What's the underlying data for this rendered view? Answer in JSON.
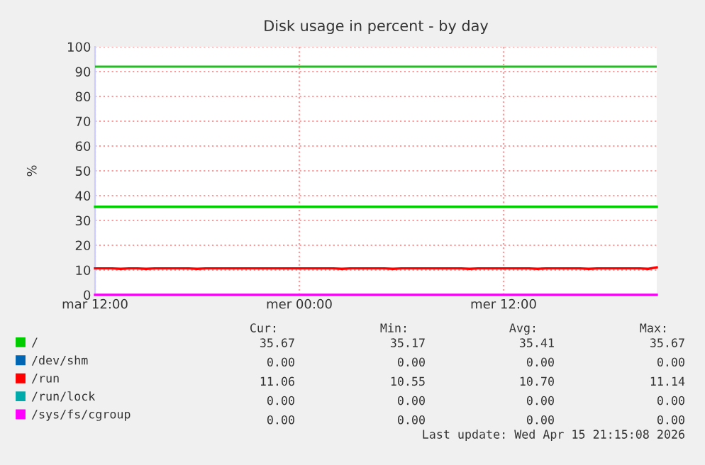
{
  "chart_data": {
    "type": "line",
    "title": "Disk usage in percent - by day",
    "ylabel": "%",
    "categories": [
      "mar 12:00",
      null,
      null,
      null,
      null,
      null,
      null,
      null,
      null,
      null,
      null,
      null,
      null,
      null,
      null,
      null,
      null,
      null,
      null,
      null,
      null,
      null,
      null,
      null,
      "mer 00:00",
      null,
      null,
      null,
      null,
      null,
      null,
      null,
      null,
      null,
      null,
      null,
      null,
      null,
      null,
      null,
      null,
      null,
      null,
      null,
      null,
      null,
      null,
      null,
      "mer 12:00",
      null,
      null,
      null,
      null,
      null,
      null,
      null,
      null,
      null,
      null,
      null,
      null,
      null,
      null,
      null,
      null,
      null,
      null
    ],
    "ylim": [
      0,
      100
    ],
    "yticks": [
      0,
      10,
      20,
      30,
      40,
      50,
      60,
      70,
      80,
      90,
      100
    ],
    "grid": true,
    "legend": "bottom",
    "marker": "none",
    "line_style": "solid",
    "ref_lines": [
      {
        "axis": "y",
        "value": 92,
        "color": "#22bb22"
      }
    ],
    "series": [
      {
        "name": "/",
        "color": "#00cc00",
        "values": [
          35.5,
          35.5,
          35.5,
          35.5,
          35.5,
          35.5,
          35.5,
          35.5,
          35.5,
          35.5,
          35.5,
          35.5,
          35.5,
          35.5,
          35.5,
          35.5,
          35.5,
          35.5,
          35.5,
          35.5,
          35.5,
          35.5,
          35.5,
          35.5,
          35.5,
          35.5,
          35.5,
          35.5,
          35.5,
          35.5,
          35.5,
          35.5,
          35.5,
          35.5,
          35.5,
          35.5,
          35.5,
          35.5,
          35.5,
          35.5,
          35.5,
          35.5,
          35.5,
          35.5,
          35.5,
          35.5,
          35.5,
          35.5,
          35.5,
          35.5,
          35.5,
          35.5,
          35.5,
          35.5,
          35.5,
          35.5,
          35.5,
          35.5,
          35.5,
          35.5,
          35.5,
          35.5,
          35.5,
          35.5,
          35.5,
          35.5,
          35.5
        ]
      },
      {
        "name": "/dev/shm",
        "color": "#0066b3",
        "values": [
          null,
          null,
          null,
          null,
          null,
          null,
          null,
          null,
          null,
          null,
          null,
          null,
          null,
          null,
          null,
          null,
          null,
          null,
          null,
          null,
          null,
          null,
          null,
          null,
          null,
          null,
          null,
          null,
          null,
          null,
          null,
          null,
          null,
          null,
          null,
          null,
          null,
          null,
          null,
          null,
          null,
          null,
          null,
          null,
          null,
          null,
          null,
          null,
          null,
          null,
          null,
          null,
          null,
          null,
          null,
          null,
          null,
          null,
          null,
          null,
          null,
          null,
          null,
          null,
          null,
          null,
          null
        ]
      },
      {
        "name": "/run",
        "color": "#ff0000",
        "values": [
          10.7,
          10.7,
          10.7,
          10.5,
          10.7,
          10.7,
          10.5,
          10.7,
          10.7,
          10.7,
          10.7,
          10.7,
          10.5,
          10.7,
          10.7,
          10.7,
          10.7,
          10.7,
          10.7,
          10.7,
          10.7,
          10.7,
          10.7,
          10.7,
          10.7,
          10.7,
          10.7,
          10.7,
          10.7,
          10.5,
          10.7,
          10.7,
          10.7,
          10.7,
          10.7,
          10.5,
          10.7,
          10.7,
          10.7,
          10.7,
          10.7,
          10.7,
          10.7,
          10.7,
          10.5,
          10.7,
          10.7,
          10.7,
          10.7,
          10.7,
          10.7,
          10.7,
          10.5,
          10.7,
          10.7,
          10.7,
          10.7,
          10.7,
          10.5,
          10.7,
          10.7,
          10.7,
          10.7,
          10.7,
          10.7,
          10.5,
          11.1
        ]
      },
      {
        "name": "/run/lock",
        "color": "#00aaaa",
        "values": [
          null,
          null,
          null,
          null,
          null,
          null,
          null,
          null,
          null,
          null,
          null,
          null,
          null,
          null,
          null,
          null,
          null,
          null,
          null,
          null,
          null,
          null,
          null,
          null,
          null,
          null,
          null,
          null,
          null,
          null,
          null,
          null,
          null,
          null,
          null,
          null,
          null,
          null,
          null,
          null,
          null,
          null,
          null,
          null,
          null,
          null,
          null,
          null,
          null,
          null,
          null,
          null,
          null,
          null,
          null,
          null,
          null,
          null,
          null,
          null,
          null,
          null,
          null,
          null,
          null,
          null,
          null
        ]
      },
      {
        "name": "/sys/fs/cgroup",
        "color": "#ff00ff",
        "values": [
          0,
          0,
          0,
          0,
          0,
          0,
          0,
          0,
          0,
          0,
          0,
          0,
          0,
          0,
          0,
          0,
          0,
          0,
          0,
          0,
          0,
          0,
          0,
          0,
          0,
          0,
          0,
          0,
          0,
          0,
          0,
          0,
          0,
          0,
          0,
          0,
          0,
          0,
          0,
          0,
          0,
          0,
          0,
          0,
          0,
          0,
          0,
          0,
          0,
          0,
          0,
          0,
          0,
          0,
          0,
          0,
          0,
          0,
          0,
          0,
          0,
          0,
          0,
          0,
          0,
          0,
          0
        ]
      }
    ],
    "annotations": [
      "Cur:",
      "Min:",
      "Avg:",
      "Max:",
      "35.67",
      "35.17",
      "35.41",
      "35.67",
      "0.00",
      "0.00",
      "0.00",
      "0.00",
      "11.06",
      "10.55",
      "10.70",
      "11.14",
      "0.00",
      "0.00",
      "0.00",
      "0.00",
      "0.00",
      "0.00",
      "0.00",
      "0.00",
      "Last update: Wed Apr 15 21:15:08 2026"
    ]
  }
}
